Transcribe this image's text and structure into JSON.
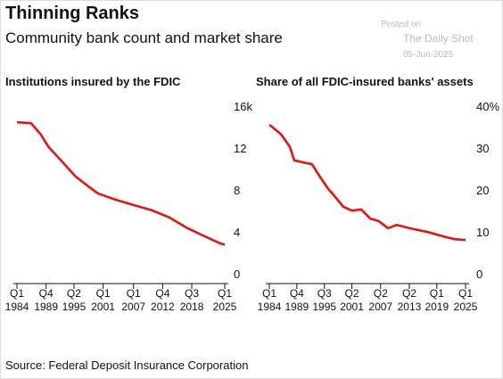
{
  "header": {
    "title": "Thinning Ranks",
    "subtitle": "Community bank count and market share"
  },
  "watermark": {
    "posted": "Posted on",
    "site": "The Daily Shot",
    "date": "05-Jun-2025"
  },
  "source": "Source: Federal Deposit Insurance Corporation",
  "chart_data": [
    {
      "type": "line",
      "title": "Institutions insured by the FDIC",
      "color": "#e8130f",
      "x": [
        1984,
        1986.8,
        1988.6,
        1990.3,
        1993,
        1995.6,
        1998.3,
        2000,
        2003.5,
        2007,
        2010.6,
        2014.1,
        2017.6,
        2021.1,
        2023.8,
        2025
      ],
      "values": [
        15.4,
        15.3,
        14.3,
        13.0,
        11.6,
        10.2,
        9.2,
        8.6,
        8.0,
        7.5,
        7.0,
        6.3,
        5.3,
        4.5,
        3.9,
        3.7
      ],
      "xlim": [
        1984,
        2025
      ],
      "xticks": [
        {
          "value": 1984,
          "label": "Q1 1984"
        },
        {
          "value": 1989.75,
          "label": "Q4 1989"
        },
        {
          "value": 1995.25,
          "label": "Q2 1995"
        },
        {
          "value": 2001,
          "label": "Q1 2001"
        },
        {
          "value": 2007,
          "label": "Q1 2007"
        },
        {
          "value": 2012.75,
          "label": "Q4 2012"
        },
        {
          "value": 2018.5,
          "label": "Q3 2018"
        },
        {
          "value": 2025,
          "label": "Q1 2025"
        }
      ],
      "ylim": [
        0,
        16
      ],
      "yticks": [
        0,
        4,
        8,
        12,
        {
          "value": 16,
          "label": "16k"
        }
      ],
      "grid": false
    },
    {
      "type": "line",
      "title": "Share of all FDIC-insured banks' assets",
      "color": "#e8130f",
      "x": [
        1984,
        1986.4,
        1988.3,
        1989.2,
        1991.1,
        1992.9,
        1994.8,
        1996.3,
        1997.6,
        1999.5,
        2001.3,
        2003.2,
        2005.1,
        2006.9,
        2008.8,
        2010.6,
        2013.4,
        2017.1,
        2020.9,
        2022.7,
        2025
      ],
      "values": [
        37.9,
        35.7,
        32.6,
        29.4,
        28.9,
        28.5,
        25.1,
        22.6,
        20.9,
        18.3,
        17.4,
        17.7,
        15.5,
        14.9,
        13.2,
        14.0,
        13.2,
        12.3,
        11.1,
        10.6,
        10.4
      ],
      "xlim": [
        1984,
        2025
      ],
      "xticks": [
        {
          "value": 1984,
          "label": "Q1 1984"
        },
        {
          "value": 1989.75,
          "label": "Q4 1989"
        },
        {
          "value": 1995.5,
          "label": "Q3 1995"
        },
        {
          "value": 2001.25,
          "label": "Q2 2001"
        },
        {
          "value": 2007.25,
          "label": "Q2 2007"
        },
        {
          "value": 2013.25,
          "label": "Q2 2013"
        },
        {
          "value": 2019,
          "label": "Q1 2019"
        },
        {
          "value": 2025,
          "label": "Q1 2025"
        }
      ],
      "ylim": [
        0,
        40
      ],
      "yticks": [
        0,
        10,
        20,
        30,
        {
          "value": 40,
          "label": "40%"
        }
      ],
      "grid": false
    }
  ]
}
